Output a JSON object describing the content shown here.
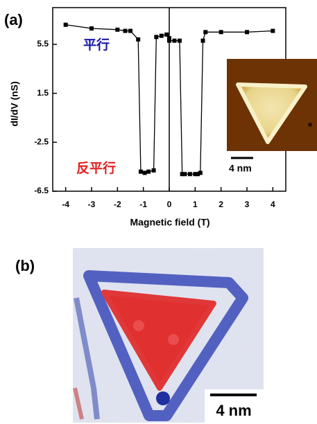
{
  "chart_data": {
    "type": "line",
    "label": "(a)",
    "xlabel": "Magnetic field (T)",
    "ylabel": "dI/dV (nS)",
    "xlim": [
      -4.5,
      4.5
    ],
    "ylim": [
      -6.5,
      8.5
    ],
    "xticks": [
      -4,
      -3,
      -2,
      -1,
      0,
      1,
      2,
      3,
      4
    ],
    "yticks": [
      -6.5,
      -2.5,
      1.5,
      5.5
    ],
    "series": [
      {
        "color": "#000000",
        "x": [
          -4,
          -3,
          -2,
          -1.7,
          -1.5,
          -1.2,
          -1.1,
          -0.95,
          -0.8,
          -0.6,
          -0.5,
          -0.3,
          -0.1,
          0
        ],
        "values": [
          7.1,
          6.8,
          6.7,
          6.6,
          6.6,
          5.9,
          -4.9,
          -5.0,
          -4.9,
          -4.8,
          6.1,
          6.2,
          6.3,
          6.0
        ]
      },
      {
        "color": "#000000",
        "x": [
          0,
          0.2,
          0.4,
          0.5,
          0.6,
          0.8,
          1.0,
          1.1,
          1.2,
          1.3,
          1.4,
          2,
          3,
          4
        ],
        "values": [
          5.8,
          5.8,
          5.8,
          -5.1,
          -5.1,
          -5.1,
          -5.1,
          -5.1,
          -5.0,
          5.8,
          6.5,
          6.5,
          6.5,
          6.6
        ]
      }
    ],
    "annotations": [
      {
        "text": "平行",
        "color": "#1a1aa8"
      },
      {
        "text": "反平行",
        "color": "#e02020"
      }
    ]
  },
  "inset": {
    "scale_label": "4 nm"
  },
  "panel_b": {
    "label": "(b)",
    "scale_label": "4 nm"
  }
}
